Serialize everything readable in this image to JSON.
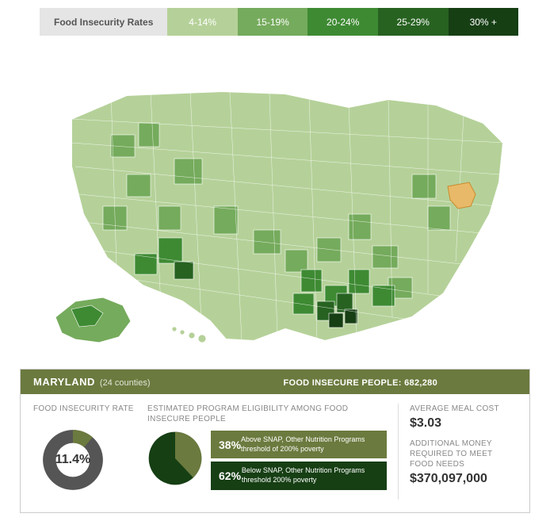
{
  "legend": {
    "title": "Food Insecurity Rates",
    "title_bg": "#e5e5e5",
    "buckets": [
      {
        "label": "4-14%",
        "color": "#b5d199"
      },
      {
        "label": "15-19%",
        "color": "#75ab5c"
      },
      {
        "label": "20-24%",
        "color": "#3e8a33"
      },
      {
        "label": "25-29%",
        "color": "#276221"
      },
      {
        "label": "30% +",
        "color": "#163f14"
      }
    ]
  },
  "map": {
    "type": "choropleth",
    "region": "USA counties",
    "highlight_color": "#e8b968",
    "highlight_state": "Maryland",
    "stroke_color": "#ffffff",
    "background": "#ffffff",
    "note": "county-level shading uses legend bucket colors; Mississippi Delta / Deep South / AK / NM show darkest greens; Midwest & Northeast mostly lightest"
  },
  "panel": {
    "state": "MARYLAND",
    "counties_text": "(24 counties)",
    "insecure_label": "FOOD INSECURE PEOPLE:",
    "insecure_value": "682,280",
    "header_bg": "#6b7a3e",
    "rate": {
      "label": "FOOD INSECURITY RATE",
      "value_text": "11.4%",
      "value": 11.4,
      "donut_fg": "#6b7a3e",
      "donut_bg": "#555555",
      "donut_hole": "#ffffff"
    },
    "eligibility": {
      "label": "ESTIMATED PROGRAM ELIGIBILITY AMONG FOOD INSECURE PEOPLE",
      "above": {
        "pct_text": "38%",
        "pct": 38,
        "text": "Above SNAP, Other Nutrition Programs threshold of 200% poverty",
        "color": "#6b7a3e"
      },
      "below": {
        "pct_text": "62%",
        "pct": 62,
        "text": "Below SNAP, Other Nutrition Programs threshold 200% poverty",
        "color": "#163f14"
      }
    },
    "meal": {
      "label": "AVERAGE MEAL COST",
      "value": "$3.03"
    },
    "money": {
      "label": "ADDITIONAL MONEY REQUIRED TO MEET FOOD NEEDS",
      "value": "$370,097,000"
    }
  }
}
